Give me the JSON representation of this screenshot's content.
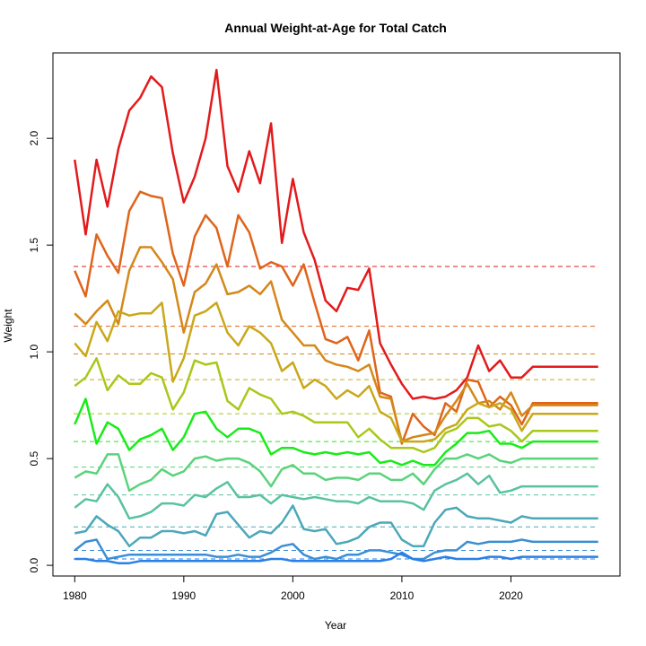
{
  "chart_data": {
    "type": "line",
    "title": "Annual Weight-at-Age for Total Catch",
    "xlabel": "Year",
    "ylabel": "Weight",
    "xlim": [
      1978,
      2030
    ],
    "ylim": [
      -0.05,
      2.4
    ],
    "x_ticks": [
      "1980",
      "1990",
      "2000",
      "2010",
      "2020"
    ],
    "y_ticks": [
      "0.0",
      "0.5",
      "1.0",
      "1.5",
      "2.0"
    ],
    "grid": false,
    "legend": "none",
    "years": [
      1980,
      1981,
      1982,
      1983,
      1984,
      1985,
      1986,
      1987,
      1988,
      1989,
      1990,
      1991,
      1992,
      1993,
      1994,
      1995,
      1996,
      1997,
      1998,
      1999,
      2000,
      2001,
      2002,
      2003,
      2004,
      2005,
      2006,
      2007,
      2008,
      2009,
      2010,
      2011,
      2012,
      2013,
      2014,
      2015,
      2016,
      2017,
      2018,
      2019,
      2020,
      2021,
      2022,
      2023,
      2024,
      2025,
      2026,
      2027,
      2028
    ],
    "series": [
      {
        "color": "#e31a1c",
        "mean": 1.4,
        "values": [
          1.9,
          1.55,
          1.9,
          1.68,
          1.95,
          2.13,
          2.19,
          2.29,
          2.24,
          1.93,
          1.7,
          1.82,
          2.0,
          2.32,
          1.87,
          1.75,
          1.94,
          1.79,
          2.07,
          1.51,
          1.81,
          1.56,
          1.43,
          1.24,
          1.19,
          1.3,
          1.29,
          1.39,
          1.04,
          0.94,
          0.85,
          0.78,
          0.79,
          0.78,
          0.79,
          0.82,
          0.88,
          1.03,
          0.91,
          0.96,
          0.88,
          0.88,
          0.93,
          0.93,
          0.93,
          0.93,
          0.93,
          0.93,
          0.93
        ]
      },
      {
        "color": "#e0641a",
        "mean": 1.12,
        "values": [
          1.38,
          1.26,
          1.55,
          1.45,
          1.37,
          1.66,
          1.75,
          1.73,
          1.72,
          1.46,
          1.31,
          1.54,
          1.64,
          1.58,
          1.4,
          1.64,
          1.56,
          1.39,
          1.42,
          1.4,
          1.31,
          1.41,
          1.23,
          1.06,
          1.04,
          1.07,
          0.96,
          1.1,
          0.81,
          0.79,
          0.57,
          0.71,
          0.65,
          0.61,
          0.76,
          0.72,
          0.87,
          0.86,
          0.74,
          0.79,
          0.75,
          0.66,
          0.76,
          0.76,
          0.76,
          0.76,
          0.76,
          0.76,
          0.76
        ]
      },
      {
        "color": "#d4881a",
        "mean": 0.99,
        "values": [
          1.18,
          1.13,
          1.19,
          1.24,
          1.13,
          1.38,
          1.49,
          1.49,
          1.42,
          1.34,
          1.09,
          1.28,
          1.32,
          1.41,
          1.27,
          1.28,
          1.31,
          1.27,
          1.33,
          1.15,
          1.09,
          1.03,
          1.03,
          0.96,
          0.94,
          0.93,
          0.91,
          0.94,
          0.79,
          0.78,
          0.58,
          0.6,
          0.61,
          0.62,
          0.7,
          0.77,
          0.85,
          0.76,
          0.77,
          0.73,
          0.81,
          0.7,
          0.75,
          0.75,
          0.75,
          0.75,
          0.75,
          0.75,
          0.75
        ]
      },
      {
        "color": "#c9a81a",
        "mean": 0.87,
        "values": [
          1.04,
          0.98,
          1.14,
          1.05,
          1.19,
          1.17,
          1.18,
          1.18,
          1.23,
          0.86,
          0.97,
          1.17,
          1.19,
          1.23,
          1.09,
          1.03,
          1.12,
          1.09,
          1.04,
          0.91,
          0.95,
          0.83,
          0.87,
          0.84,
          0.78,
          0.82,
          0.79,
          0.84,
          0.72,
          0.69,
          0.58,
          0.58,
          0.58,
          0.59,
          0.64,
          0.66,
          0.73,
          0.76,
          0.74,
          0.76,
          0.73,
          0.63,
          0.71,
          0.71,
          0.71,
          0.71,
          0.71,
          0.71,
          0.71
        ]
      },
      {
        "color": "#a8c81a",
        "mean": 0.71,
        "values": [
          0.84,
          0.88,
          0.97,
          0.82,
          0.89,
          0.85,
          0.85,
          0.9,
          0.88,
          0.73,
          0.81,
          0.96,
          0.94,
          0.95,
          0.77,
          0.73,
          0.83,
          0.8,
          0.78,
          0.71,
          0.72,
          0.7,
          0.67,
          0.67,
          0.67,
          0.67,
          0.6,
          0.64,
          0.59,
          0.55,
          0.55,
          0.55,
          0.53,
          0.55,
          0.62,
          0.64,
          0.69,
          0.69,
          0.65,
          0.66,
          0.63,
          0.58,
          0.63,
          0.63,
          0.63,
          0.63,
          0.63,
          0.63,
          0.63
        ]
      },
      {
        "color": "#18ec18",
        "mean": 0.58,
        "values": [
          0.66,
          0.78,
          0.57,
          0.67,
          0.64,
          0.54,
          0.59,
          0.61,
          0.64,
          0.54,
          0.6,
          0.71,
          0.72,
          0.64,
          0.6,
          0.64,
          0.64,
          0.62,
          0.52,
          0.55,
          0.55,
          0.53,
          0.52,
          0.53,
          0.52,
          0.53,
          0.52,
          0.53,
          0.48,
          0.49,
          0.47,
          0.49,
          0.47,
          0.47,
          0.53,
          0.57,
          0.62,
          0.62,
          0.63,
          0.57,
          0.57,
          0.55,
          0.58,
          0.58,
          0.58,
          0.58,
          0.58,
          0.58,
          0.58
        ]
      },
      {
        "color": "#5ad37a",
        "mean": 0.46,
        "values": [
          0.41,
          0.44,
          0.43,
          0.52,
          0.52,
          0.35,
          0.38,
          0.4,
          0.45,
          0.42,
          0.44,
          0.5,
          0.51,
          0.49,
          0.5,
          0.5,
          0.48,
          0.44,
          0.37,
          0.45,
          0.47,
          0.43,
          0.43,
          0.4,
          0.41,
          0.41,
          0.4,
          0.43,
          0.43,
          0.4,
          0.4,
          0.43,
          0.38,
          0.45,
          0.5,
          0.5,
          0.52,
          0.5,
          0.52,
          0.49,
          0.48,
          0.5,
          0.5,
          0.5,
          0.5,
          0.5,
          0.5,
          0.5,
          0.5
        ]
      },
      {
        "color": "#59c2a0",
        "mean": 0.33,
        "values": [
          0.27,
          0.31,
          0.3,
          0.38,
          0.32,
          0.22,
          0.23,
          0.25,
          0.29,
          0.29,
          0.28,
          0.33,
          0.32,
          0.36,
          0.39,
          0.32,
          0.32,
          0.33,
          0.29,
          0.33,
          0.32,
          0.31,
          0.32,
          0.31,
          0.3,
          0.3,
          0.29,
          0.32,
          0.3,
          0.3,
          0.3,
          0.29,
          0.26,
          0.35,
          0.38,
          0.4,
          0.43,
          0.38,
          0.42,
          0.34,
          0.35,
          0.37,
          0.37,
          0.37,
          0.37,
          0.37,
          0.37,
          0.37,
          0.37
        ]
      },
      {
        "color": "#4aa8b8",
        "mean": 0.18,
        "values": [
          0.15,
          0.16,
          0.23,
          0.19,
          0.16,
          0.09,
          0.13,
          0.13,
          0.16,
          0.16,
          0.15,
          0.16,
          0.14,
          0.24,
          0.25,
          0.19,
          0.13,
          0.16,
          0.15,
          0.2,
          0.28,
          0.17,
          0.16,
          0.17,
          0.1,
          0.11,
          0.13,
          0.18,
          0.2,
          0.2,
          0.12,
          0.09,
          0.09,
          0.2,
          0.26,
          0.27,
          0.23,
          0.22,
          0.22,
          0.21,
          0.2,
          0.23,
          0.22,
          0.22,
          0.22,
          0.22,
          0.22,
          0.22,
          0.22
        ]
      },
      {
        "color": "#3c8ed4",
        "mean": 0.07,
        "values": [
          0.07,
          0.11,
          0.12,
          0.03,
          0.04,
          0.05,
          0.05,
          0.05,
          0.05,
          0.05,
          0.05,
          0.05,
          0.05,
          0.04,
          0.04,
          0.05,
          0.04,
          0.04,
          0.06,
          0.09,
          0.1,
          0.05,
          0.03,
          0.04,
          0.03,
          0.05,
          0.05,
          0.07,
          0.07,
          0.06,
          0.05,
          0.03,
          0.03,
          0.06,
          0.07,
          0.07,
          0.11,
          0.1,
          0.11,
          0.11,
          0.11,
          0.12,
          0.11,
          0.11,
          0.11,
          0.11,
          0.11,
          0.11,
          0.11
        ]
      },
      {
        "color": "#2a7fe8",
        "mean": 0.03,
        "values": [
          0.03,
          0.03,
          0.02,
          0.02,
          0.01,
          0.01,
          0.02,
          0.02,
          0.02,
          0.02,
          0.02,
          0.02,
          0.02,
          0.02,
          0.02,
          0.02,
          0.02,
          0.02,
          0.03,
          0.03,
          0.02,
          0.02,
          0.02,
          0.02,
          0.02,
          0.02,
          0.02,
          0.02,
          0.02,
          0.03,
          0.06,
          0.03,
          0.02,
          0.03,
          0.04,
          0.03,
          0.03,
          0.03,
          0.04,
          0.04,
          0.03,
          0.04,
          0.04,
          0.04,
          0.04,
          0.04,
          0.04,
          0.04,
          0.04
        ]
      }
    ]
  }
}
